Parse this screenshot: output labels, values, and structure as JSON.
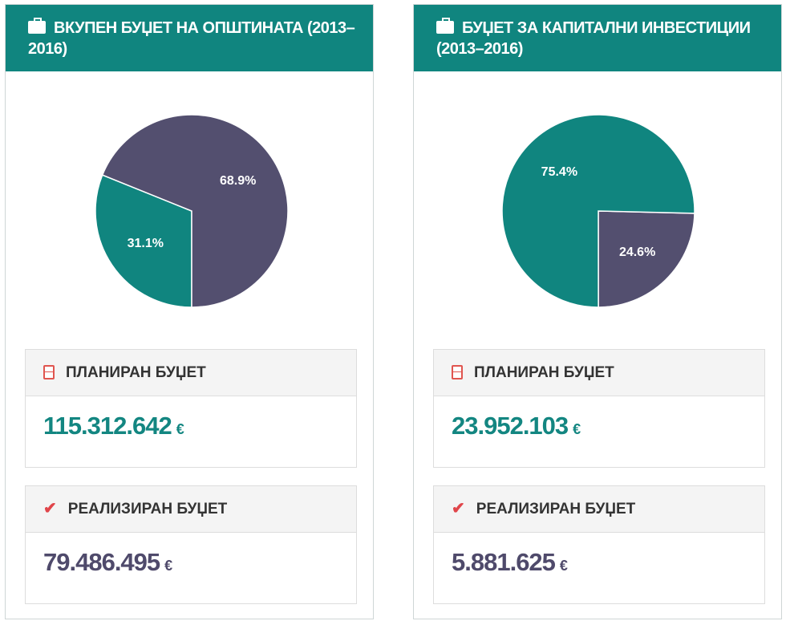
{
  "cards": [
    {
      "title": "ВКУПЕН БУЏЕТ НА ОПШТИНАТА (2013–2016)",
      "icon": "briefcase-icon",
      "planned_label": "ПЛАНИРАН БУЏЕТ",
      "planned_value": "115.312.642",
      "realized_label": "РЕАЛИЗИРАН БУЏЕТ",
      "realized_value": "79.486.495",
      "currency": "€"
    },
    {
      "title": "БУЏЕТ ЗА КАПИТАЛНИ ИНВЕСТИЦИИ (2013–2016)",
      "icon": "briefcase-icon",
      "planned_label": "ПЛАНИРАН БУЏЕТ",
      "planned_value": "23.952.103",
      "realized_label": "РЕАЛИЗИРАН БУЏЕТ",
      "realized_value": "5.881.625",
      "currency": "€"
    }
  ],
  "colors": {
    "teal": "#10857f",
    "purple": "#534f6f",
    "header": "#10857f",
    "icon_red": "#e0554f"
  },
  "chart_data": [
    {
      "type": "pie",
      "slices": [
        {
          "label": "31.1%",
          "value": 31.1,
          "color": "#10857f"
        },
        {
          "label": "68.9%",
          "value": 68.9,
          "color": "#534f6f"
        }
      ]
    },
    {
      "type": "pie",
      "slices": [
        {
          "label": "24.6%",
          "value": 24.6,
          "color": "#534f6f"
        },
        {
          "label": "75.4%",
          "value": 75.4,
          "color": "#10857f"
        }
      ]
    }
  ]
}
